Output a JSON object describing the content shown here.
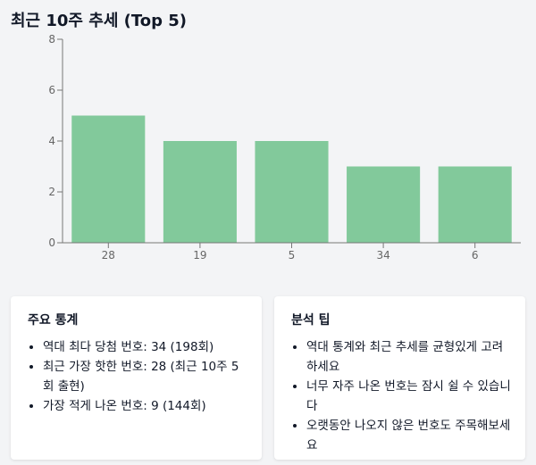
{
  "page": {
    "title": "최근 10주 추세 (Top 5)"
  },
  "chart_data": {
    "type": "bar",
    "categories": [
      "28",
      "19",
      "5",
      "34",
      "6"
    ],
    "values": [
      5,
      4,
      4,
      3,
      3
    ],
    "ylim": [
      0,
      8
    ],
    "yticks": [
      0,
      2,
      4,
      6,
      8
    ],
    "grid": false,
    "bar_color": "#82c99b"
  },
  "stats_card": {
    "title": "주요 통계",
    "items": [
      "역대 최다 당첨 번호: 34 (198회)",
      "최근 가장 핫한 번호: 28 (최근 10주 5회 출현)",
      "가장 적게 나온 번호: 9 (144회)"
    ]
  },
  "tips_card": {
    "title": "분석 팁",
    "items": [
      "역대 통계와 최근 추세를 균형있게 고려하세요",
      "너무 자주 나온 번호는 잠시 쉴 수 있습니다",
      "오랫동안 나오지 않은 번호도 주목해보세요"
    ]
  }
}
